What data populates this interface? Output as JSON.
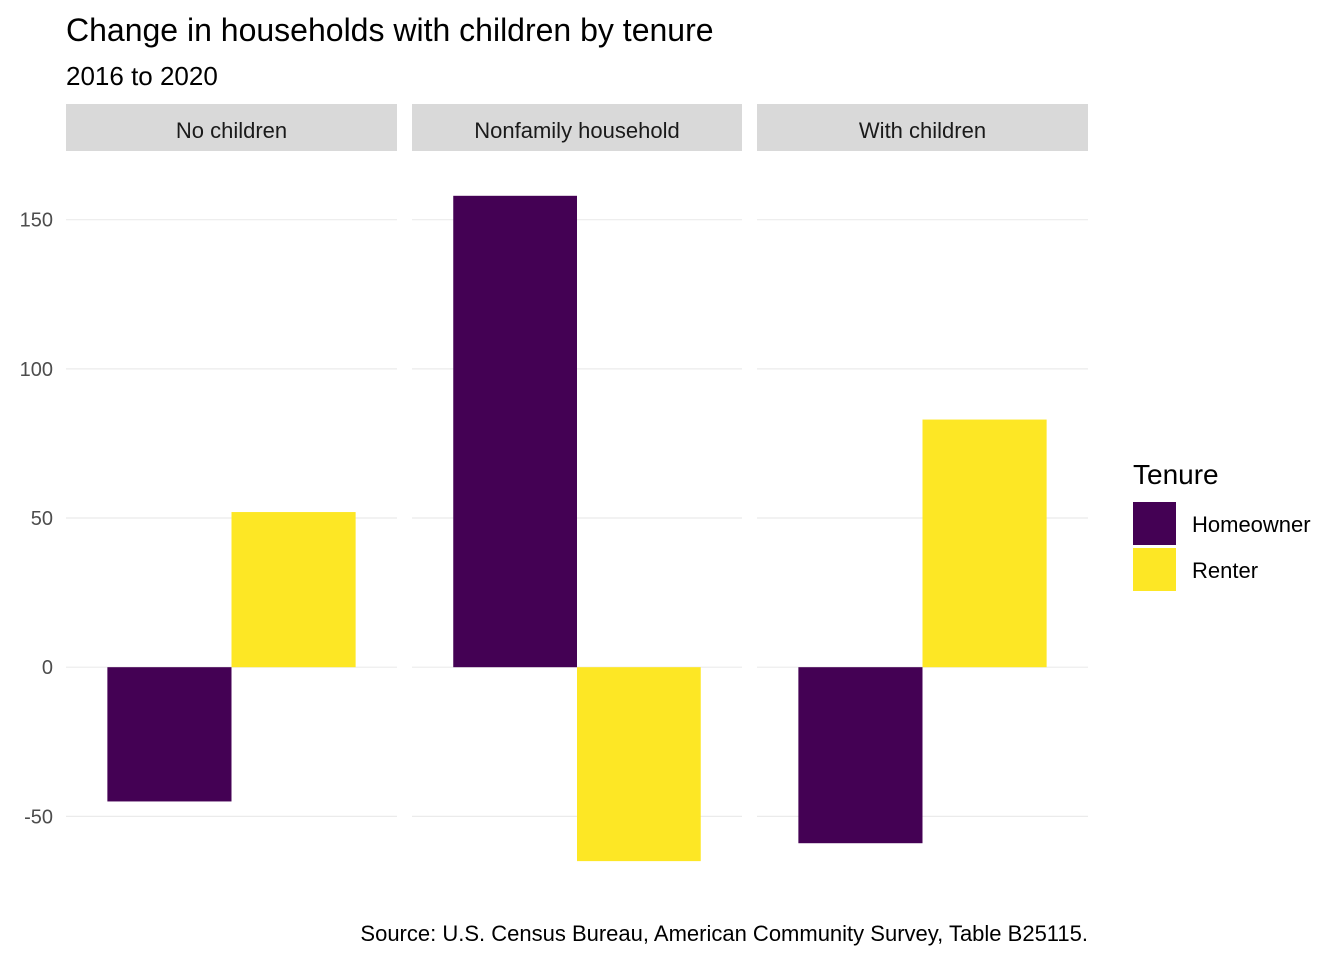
{
  "chart_data": {
    "type": "bar",
    "title": "Change in households with children by tenure",
    "subtitle": "2016 to 2020",
    "caption": "Source: U.S. Census Bureau, American Community Survey, Table B25115.",
    "facets": [
      "No children",
      "Nonfamily household",
      "With children"
    ],
    "series": [
      {
        "name": "Homeowner",
        "color": "#440154",
        "values": [
          -45,
          158,
          -59
        ]
      },
      {
        "name": "Renter",
        "color": "#FDE725",
        "values": [
          52,
          -65,
          83
        ]
      }
    ],
    "ylim": [
      -72,
      170
    ],
    "yticks": [
      150,
      100,
      50,
      0,
      -50
    ],
    "ytick_labels": [
      "150",
      "100",
      "50",
      "0",
      "-50"
    ],
    "grid": true,
    "legend": {
      "title": "Tenure",
      "position": "right"
    },
    "strip_color": "#d9d9d9",
    "grid_color": "#ebebeb"
  }
}
